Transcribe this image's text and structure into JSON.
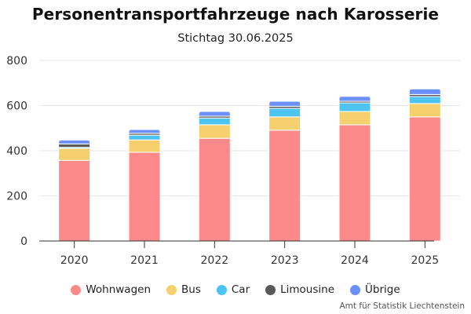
{
  "chart_data": {
    "type": "bar",
    "stacked": true,
    "title": "Personentransportfahrzeuge nach Karosserie",
    "subtitle": "Stichtag 30.06.2025",
    "xlabel": "",
    "ylabel": "",
    "categories": [
      "2020",
      "2021",
      "2022",
      "2023",
      "2024",
      "2025"
    ],
    "ylim": [
      0,
      800
    ],
    "yticks": [
      0,
      200,
      400,
      600,
      800
    ],
    "ytick_labels": [
      "0",
      "200",
      "400",
      "600",
      "800"
    ],
    "grid": true,
    "legend_position": "bottom-center",
    "series": [
      {
        "name": "Wohnwagen",
        "color": "#fd8a8a",
        "values": [
          357,
          393,
          455,
          491,
          515,
          550
        ]
      },
      {
        "name": "Bus",
        "color": "#f5d06c",
        "values": [
          53,
          55,
          60,
          59,
          59,
          59
        ]
      },
      {
        "name": "Car",
        "color": "#4dc3f0",
        "values": [
          5,
          21,
          30,
          38,
          38,
          31
        ]
      },
      {
        "name": "Limousine",
        "color": "#595959",
        "values": [
          15,
          8,
          8,
          9,
          7,
          9
        ]
      },
      {
        "name": "Übrige",
        "color": "#6b8ffc",
        "values": [
          17,
          17,
          21,
          22,
          22,
          25
        ]
      }
    ],
    "credits": "Amt für Statistik Liechtenstein"
  }
}
